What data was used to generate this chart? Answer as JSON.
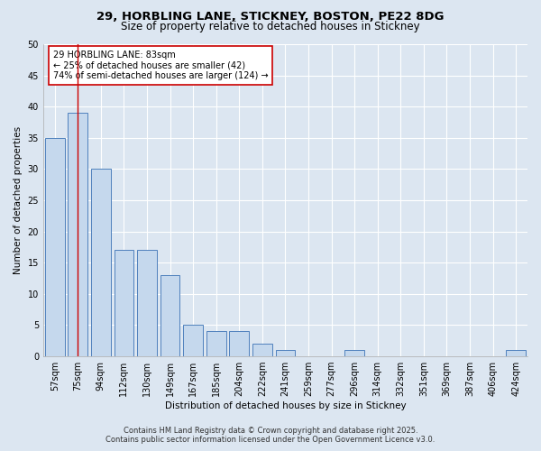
{
  "title_line1": "29, HORBLING LANE, STICKNEY, BOSTON, PE22 8DG",
  "title_line2": "Size of property relative to detached houses in Stickney",
  "xlabel": "Distribution of detached houses by size in Stickney",
  "ylabel": "Number of detached properties",
  "categories": [
    "57sqm",
    "75sqm",
    "94sqm",
    "112sqm",
    "130sqm",
    "149sqm",
    "167sqm",
    "185sqm",
    "204sqm",
    "222sqm",
    "241sqm",
    "259sqm",
    "277sqm",
    "296sqm",
    "314sqm",
    "332sqm",
    "351sqm",
    "369sqm",
    "387sqm",
    "406sqm",
    "424sqm"
  ],
  "values": [
    35,
    39,
    30,
    17,
    17,
    13,
    5,
    4,
    4,
    2,
    1,
    0,
    0,
    1,
    0,
    0,
    0,
    0,
    0,
    0,
    1
  ],
  "bar_color": "#c5d8ed",
  "bar_edge_color": "#4f81bd",
  "background_color": "#dce6f1",
  "plot_bg_color": "#dce6f1",
  "grid_color": "#ffffff",
  "annotation_line1": "29 HORBLING LANE: 83sqm",
  "annotation_line2": "← 25% of detached houses are smaller (42)",
  "annotation_line3": "74% of semi-detached houses are larger (124) →",
  "annotation_box_color": "#cc0000",
  "vline_x": 1,
  "vline_color": "#cc0000",
  "ylim": [
    0,
    50
  ],
  "yticks": [
    0,
    5,
    10,
    15,
    20,
    25,
    30,
    35,
    40,
    45,
    50
  ],
  "footer_line1": "Contains HM Land Registry data © Crown copyright and database right 2025.",
  "footer_line2": "Contains public sector information licensed under the Open Government Licence v3.0.",
  "title_fontsize": 9.5,
  "subtitle_fontsize": 8.5,
  "axis_label_fontsize": 7.5,
  "tick_fontsize": 7,
  "annotation_fontsize": 7,
  "footer_fontsize": 6
}
